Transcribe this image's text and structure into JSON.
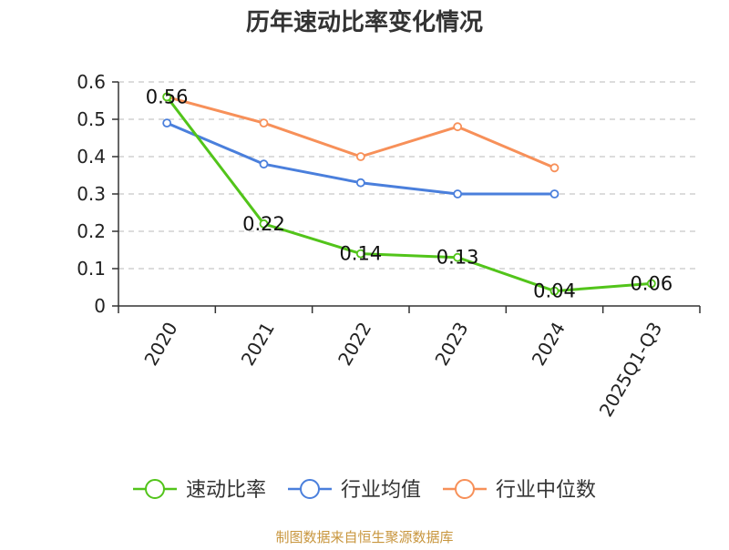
{
  "chart_data": {
    "type": "line",
    "title": "历年速动比率变化情况",
    "categories": [
      "2020",
      "2021",
      "2022",
      "2023",
      "2024",
      "2025Q1-Q3"
    ],
    "ylim": [
      0,
      0.6
    ],
    "yticks": [
      "0",
      "0.1",
      "0.2",
      "0.3",
      "0.4",
      "0.5",
      "0.6"
    ],
    "grid": true,
    "legend_position": "bottom",
    "series": [
      {
        "name": "速动比率",
        "color": "#52c41a",
        "values": [
          0.56,
          0.22,
          0.14,
          0.13,
          0.04,
          0.06
        ],
        "labels": [
          "0.56",
          "0.22",
          "0.14",
          "0.13",
          "0.04",
          "0.06"
        ]
      },
      {
        "name": "行业均值",
        "color": "#4a7fdc",
        "values": [
          0.49,
          0.38,
          0.33,
          0.3,
          0.3,
          null
        ]
      },
      {
        "name": "行业中位数",
        "color": "#f79059",
        "values": [
          0.56,
          0.49,
          0.4,
          0.48,
          0.37,
          null
        ]
      }
    ]
  },
  "source_text": "制图数据来自恒生聚源数据库"
}
